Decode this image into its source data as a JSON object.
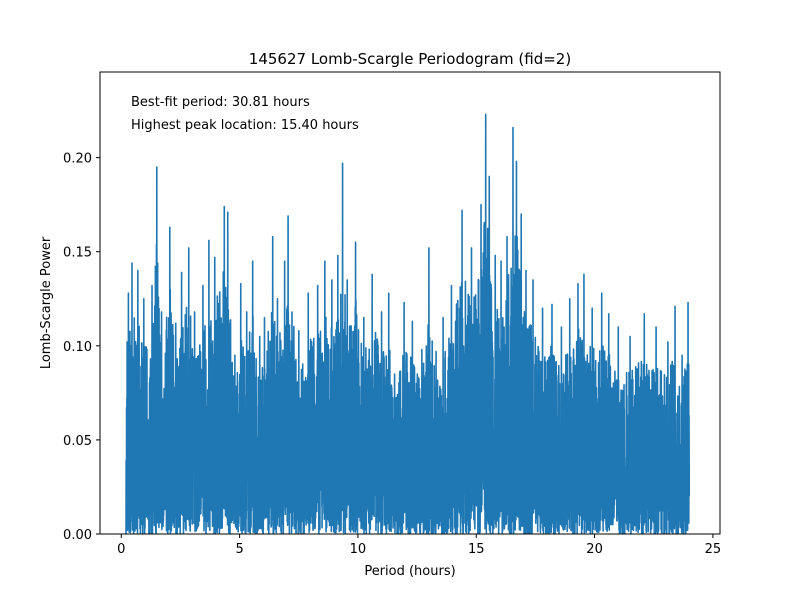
{
  "chart_data": {
    "type": "line",
    "title": "145627 Lomb-Scargle Periodogram (fid=2)",
    "xlabel": "Period (hours)",
    "ylabel": "Lomb-Scargle Power",
    "xlim": [
      -0.9,
      25.3
    ],
    "ylim": [
      0.0,
      0.2455
    ],
    "x_ticks": [
      0,
      5,
      10,
      15,
      20,
      25
    ],
    "y_ticks": [
      0.0,
      0.05,
      0.1,
      0.15,
      0.2
    ],
    "grid": false,
    "legend": "none",
    "series_color": "#1f77b4",
    "period_range": [
      0.2,
      24.0
    ],
    "annotations": [
      "Best-fit period: 30.81 hours",
      "Highest peak location: 15.40 hours"
    ],
    "peaks": [
      {
        "x": 0.3,
        "y": 0.128
      },
      {
        "x": 0.45,
        "y": 0.144
      },
      {
        "x": 0.7,
        "y": 0.14
      },
      {
        "x": 0.95,
        "y": 0.125
      },
      {
        "x": 1.3,
        "y": 0.132
      },
      {
        "x": 1.5,
        "y": 0.195
      },
      {
        "x": 1.7,
        "y": 0.118
      },
      {
        "x": 2.05,
        "y": 0.163
      },
      {
        "x": 2.3,
        "y": 0.112
      },
      {
        "x": 2.55,
        "y": 0.139
      },
      {
        "x": 2.85,
        "y": 0.152
      },
      {
        "x": 3.1,
        "y": 0.118
      },
      {
        "x": 3.45,
        "y": 0.132
      },
      {
        "x": 3.7,
        "y": 0.156
      },
      {
        "x": 3.95,
        "y": 0.147
      },
      {
        "x": 4.35,
        "y": 0.174
      },
      {
        "x": 4.5,
        "y": 0.171
      },
      {
        "x": 4.8,
        "y": 0.095
      },
      {
        "x": 5.05,
        "y": 0.133
      },
      {
        "x": 5.3,
        "y": 0.118
      },
      {
        "x": 5.55,
        "y": 0.145
      },
      {
        "x": 5.85,
        "y": 0.105
      },
      {
        "x": 6.05,
        "y": 0.115
      },
      {
        "x": 6.4,
        "y": 0.158
      },
      {
        "x": 6.6,
        "y": 0.125
      },
      {
        "x": 6.9,
        "y": 0.145
      },
      {
        "x": 7.05,
        "y": 0.169
      },
      {
        "x": 7.5,
        "y": 0.108
      },
      {
        "x": 7.9,
        "y": 0.128
      },
      {
        "x": 8.3,
        "y": 0.132
      },
      {
        "x": 8.6,
        "y": 0.145
      },
      {
        "x": 8.9,
        "y": 0.135
      },
      {
        "x": 9.15,
        "y": 0.148
      },
      {
        "x": 9.35,
        "y": 0.197
      },
      {
        "x": 9.55,
        "y": 0.135
      },
      {
        "x": 9.9,
        "y": 0.155
      },
      {
        "x": 10.25,
        "y": 0.115
      },
      {
        "x": 10.6,
        "y": 0.138
      },
      {
        "x": 11.0,
        "y": 0.118
      },
      {
        "x": 11.3,
        "y": 0.128
      },
      {
        "x": 11.55,
        "y": 0.085
      },
      {
        "x": 11.95,
        "y": 0.123
      },
      {
        "x": 12.3,
        "y": 0.113
      },
      {
        "x": 12.7,
        "y": 0.098
      },
      {
        "x": 13.0,
        "y": 0.152
      },
      {
        "x": 13.3,
        "y": 0.097
      },
      {
        "x": 13.6,
        "y": 0.115
      },
      {
        "x": 13.95,
        "y": 0.132
      },
      {
        "x": 14.4,
        "y": 0.172
      },
      {
        "x": 14.8,
        "y": 0.152
      },
      {
        "x": 15.2,
        "y": 0.175
      },
      {
        "x": 15.4,
        "y": 0.223
      },
      {
        "x": 15.55,
        "y": 0.19
      },
      {
        "x": 15.8,
        "y": 0.148
      },
      {
        "x": 16.05,
        "y": 0.145
      },
      {
        "x": 16.3,
        "y": 0.158
      },
      {
        "x": 16.55,
        "y": 0.216
      },
      {
        "x": 16.7,
        "y": 0.198
      },
      {
        "x": 16.9,
        "y": 0.17
      },
      {
        "x": 17.1,
        "y": 0.14
      },
      {
        "x": 17.4,
        "y": 0.135
      },
      {
        "x": 17.8,
        "y": 0.12
      },
      {
        "x": 18.2,
        "y": 0.122
      },
      {
        "x": 18.6,
        "y": 0.11
      },
      {
        "x": 18.95,
        "y": 0.125
      },
      {
        "x": 19.3,
        "y": 0.133
      },
      {
        "x": 19.55,
        "y": 0.138
      },
      {
        "x": 19.9,
        "y": 0.12
      },
      {
        "x": 20.3,
        "y": 0.128
      },
      {
        "x": 20.6,
        "y": 0.117
      },
      {
        "x": 21.0,
        "y": 0.11
      },
      {
        "x": 21.5,
        "y": 0.105
      },
      {
        "x": 22.1,
        "y": 0.117
      },
      {
        "x": 22.6,
        "y": 0.11
      },
      {
        "x": 23.1,
        "y": 0.102
      },
      {
        "x": 23.4,
        "y": 0.121
      },
      {
        "x": 23.7,
        "y": 0.095
      },
      {
        "x": 23.95,
        "y": 0.123
      }
    ]
  }
}
